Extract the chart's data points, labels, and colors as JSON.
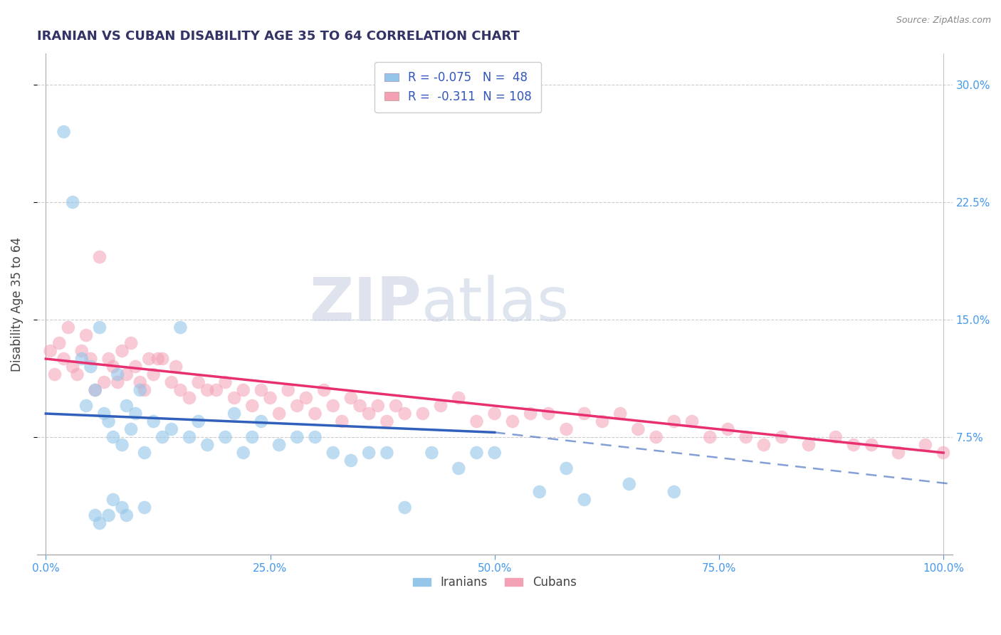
{
  "title": "IRANIAN VS CUBAN DISABILITY AGE 35 TO 64 CORRELATION CHART",
  "source": "Source: ZipAtlas.com",
  "ylabel": "Disability Age 35 to 64",
  "xlim_min": -1,
  "xlim_max": 101,
  "ylim_min": 0,
  "ylim_max": 32,
  "xticks": [
    0,
    25,
    50,
    75,
    100
  ],
  "xtick_labels": [
    "0.0%",
    "25.0%",
    "50.0%",
    "75.0%",
    "100.0%"
  ],
  "yticks": [
    7.5,
    15.0,
    22.5,
    30.0
  ],
  "ytick_labels": [
    "7.5%",
    "15.0%",
    "22.5%",
    "30.0%"
  ],
  "iranians_R": -0.075,
  "iranians_N": 48,
  "cubans_R": -0.311,
  "cubans_N": 108,
  "blue_scatter_color": "#93C6E8",
  "pink_scatter_color": "#F4A0B5",
  "blue_line_color": "#3060BB",
  "pink_line_color": "#E83070",
  "title_color": "#333366",
  "axis_label_color": "#444444",
  "tick_color": "#4499EE",
  "legend_text_color": "#3355BB",
  "watermark_zip": "ZIP",
  "watermark_atlas": "atlas",
  "iranians_x": [
    2.0,
    3.0,
    4.0,
    4.5,
    5.0,
    5.5,
    6.0,
    6.5,
    7.0,
    7.5,
    8.0,
    8.5,
    9.0,
    9.5,
    10.0,
    10.5,
    11.0,
    12.0,
    13.0,
    14.0,
    15.0,
    16.0,
    17.0,
    18.0,
    20.0,
    21.0,
    22.0,
    23.0,
    24.0,
    26.0,
    28.0,
    30.0,
    32.0,
    34.0,
    36.0,
    38.0,
    40.0,
    43.0,
    46.0,
    48.0,
    50.0,
    55.0,
    58.0,
    60.0,
    65.0,
    70.0
  ],
  "iranians_y": [
    27.0,
    22.5,
    12.5,
    9.5,
    12.0,
    10.5,
    14.5,
    9.0,
    8.5,
    7.5,
    11.5,
    7.0,
    9.5,
    8.0,
    9.0,
    10.5,
    6.5,
    8.5,
    7.5,
    8.0,
    14.5,
    7.5,
    8.5,
    7.0,
    7.5,
    9.0,
    6.5,
    7.5,
    8.5,
    7.0,
    7.5,
    7.5,
    6.5,
    6.0,
    6.5,
    6.5,
    3.0,
    6.5,
    5.5,
    6.5,
    6.5,
    4.0,
    5.5,
    3.5,
    4.5,
    4.0
  ],
  "iranians_low_x": [
    5.5,
    6.0,
    7.0,
    7.5,
    8.5,
    9.0,
    11.0
  ],
  "iranians_low_y": [
    2.5,
    2.0,
    2.5,
    3.5,
    3.0,
    2.5,
    3.0
  ],
  "cubans_x": [
    0.5,
    1.0,
    1.5,
    2.0,
    2.5,
    3.0,
    3.5,
    4.0,
    4.5,
    5.0,
    5.5,
    6.0,
    6.5,
    7.0,
    7.5,
    8.0,
    8.5,
    9.0,
    9.5,
    10.0,
    10.5,
    11.0,
    11.5,
    12.0,
    12.5,
    13.0,
    14.0,
    14.5,
    15.0,
    16.0,
    17.0,
    18.0,
    19.0,
    20.0,
    21.0,
    22.0,
    23.0,
    24.0,
    25.0,
    26.0,
    27.0,
    28.0,
    29.0,
    30.0,
    31.0,
    32.0,
    33.0,
    34.0,
    35.0,
    36.0,
    37.0,
    38.0,
    39.0,
    40.0,
    42.0,
    44.0,
    46.0,
    48.0,
    50.0,
    52.0,
    54.0,
    56.0,
    58.0,
    60.0,
    62.0,
    64.0,
    66.0,
    68.0,
    70.0,
    72.0,
    74.0,
    76.0,
    78.0,
    80.0,
    82.0,
    85.0,
    88.0,
    90.0,
    92.0,
    95.0,
    98.0,
    100.0
  ],
  "cubans_y": [
    13.0,
    11.5,
    13.5,
    12.5,
    14.5,
    12.0,
    11.5,
    13.0,
    14.0,
    12.5,
    10.5,
    19.0,
    11.0,
    12.5,
    12.0,
    11.0,
    13.0,
    11.5,
    13.5,
    12.0,
    11.0,
    10.5,
    12.5,
    11.5,
    12.5,
    12.5,
    11.0,
    12.0,
    10.5,
    10.0,
    11.0,
    10.5,
    10.5,
    11.0,
    10.0,
    10.5,
    9.5,
    10.5,
    10.0,
    9.0,
    10.5,
    9.5,
    10.0,
    9.0,
    10.5,
    9.5,
    8.5,
    10.0,
    9.5,
    9.0,
    9.5,
    8.5,
    9.5,
    9.0,
    9.0,
    9.5,
    10.0,
    8.5,
    9.0,
    8.5,
    9.0,
    9.0,
    8.0,
    9.0,
    8.5,
    9.0,
    8.0,
    7.5,
    8.5,
    8.5,
    7.5,
    8.0,
    7.5,
    7.0,
    7.5,
    7.0,
    7.5,
    7.0,
    7.0,
    6.5,
    7.0,
    6.5
  ],
  "pink_line_x0": 0,
  "pink_line_y0": 12.5,
  "pink_line_x1": 100,
  "pink_line_y1": 6.5,
  "blue_solid_x0": 0,
  "blue_solid_y0": 9.0,
  "blue_solid_x1": 50,
  "blue_solid_y1": 7.8,
  "blue_dash_x0": 50,
  "blue_dash_y0": 7.8,
  "blue_dash_x1": 101,
  "blue_dash_y1": 4.5
}
